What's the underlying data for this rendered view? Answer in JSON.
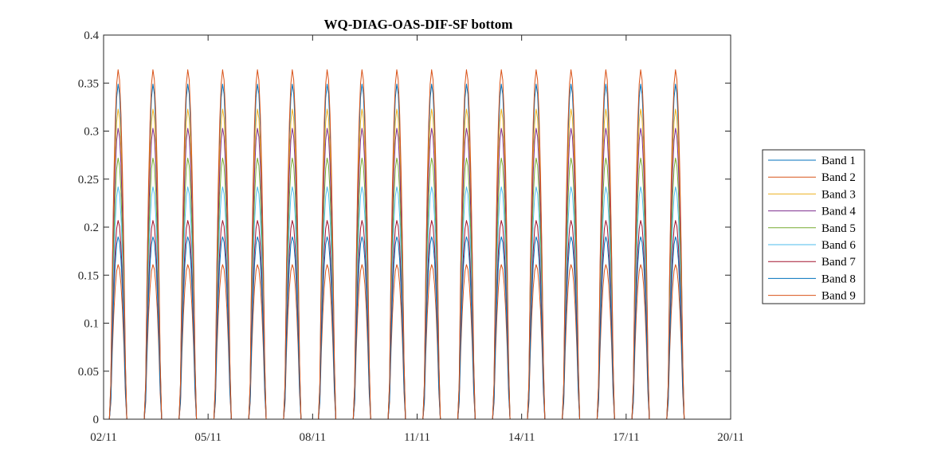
{
  "chart_data": {
    "type": "line",
    "title": "WQ-DIAG-OAS-DIF-SF bottom",
    "xlabel": "",
    "ylabel": "",
    "x_tick_labels": [
      "02/11",
      "05/11",
      "08/11",
      "11/11",
      "14/11",
      "17/11",
      "20/11"
    ],
    "y_tick_labels": [
      "0",
      "0.05",
      "0.1",
      "0.15",
      "0.2",
      "0.25",
      "0.3",
      "0.35",
      "0.4"
    ],
    "xlim_days": [
      2,
      20
    ],
    "ylim": [
      0,
      0.4
    ],
    "grid": false,
    "legend_position": "outside-right",
    "data_end_day": 19.0,
    "daylight_start_frac": 0.2,
    "daylight_end_frac": 0.64,
    "series": [
      {
        "name": "Band 1",
        "color": "#0072BD",
        "peak": 0.349
      },
      {
        "name": "Band 2",
        "color": "#D95319",
        "peak": 0.161
      },
      {
        "name": "Band 3",
        "color": "#EDB120",
        "peak": 0.323
      },
      {
        "name": "Band 4",
        "color": "#7E2F8E",
        "peak": 0.303
      },
      {
        "name": "Band 5",
        "color": "#77AC30",
        "peak": 0.272
      },
      {
        "name": "Band 6",
        "color": "#4DBEEE",
        "peak": 0.242
      },
      {
        "name": "Band 7",
        "color": "#A2142F",
        "peak": 0.207
      },
      {
        "name": "Band 8",
        "color": "#0072BD",
        "peak": 0.19
      },
      {
        "name": "Band 9",
        "color": "#D95319",
        "peak": 0.364
      }
    ]
  }
}
